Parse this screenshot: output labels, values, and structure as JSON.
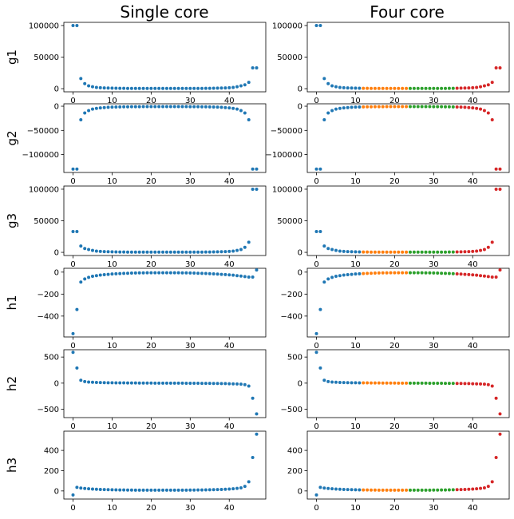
{
  "column_titles": [
    "Single core",
    "Four core"
  ],
  "colors": {
    "c0": "#1f77b4",
    "c1": "#ff7f0e",
    "c2": "#2ca02c",
    "c3": "#d62728"
  },
  "chart_data": {
    "type": "scatter",
    "layout": "6 rows x 2 columns grid",
    "columns": [
      {
        "title": "Single core",
        "segments": [
          [
            0,
            47
          ]
        ]
      },
      {
        "title": "Four core",
        "segments": [
          [
            0,
            11
          ],
          [
            12,
            23
          ],
          [
            24,
            35
          ],
          [
            36,
            47
          ]
        ]
      }
    ],
    "x": {
      "ticks": [
        0,
        10,
        20,
        30,
        40
      ],
      "range": [
        -2.35,
        49.35
      ],
      "values": [
        0,
        1,
        2,
        3,
        4,
        5,
        6,
        7,
        8,
        9,
        10,
        11,
        12,
        13,
        14,
        15,
        16,
        17,
        18,
        19,
        20,
        21,
        22,
        23,
        24,
        25,
        26,
        27,
        28,
        29,
        30,
        31,
        32,
        33,
        34,
        35,
        36,
        37,
        38,
        39,
        40,
        41,
        42,
        43,
        44,
        45,
        46,
        47
      ]
    },
    "rows": [
      {
        "ylabel": "g1",
        "yrange": [
          -5000,
          105000
        ],
        "yticks": [
          0,
          50000,
          100000
        ],
        "yticklabels": [
          "0",
          "50000",
          "100000"
        ],
        "y": [
          100000,
          100000,
          16000,
          8000,
          4500,
          3000,
          2000,
          1500,
          1200,
          1000,
          800,
          700,
          600,
          500,
          450,
          400,
          380,
          360,
          350,
          340,
          330,
          320,
          320,
          320,
          320,
          320,
          320,
          330,
          340,
          350,
          360,
          380,
          400,
          450,
          500,
          600,
          700,
          800,
          1000,
          1200,
          1500,
          2000,
          3000,
          4500,
          6000,
          10000,
          33000,
          33000
        ]
      },
      {
        "ylabel": "g2",
        "yrange": [
          -137000,
          5000
        ],
        "yticks": [
          0,
          -50000,
          -100000
        ],
        "yticklabels": [
          "0",
          "−50000",
          "−100000"
        ],
        "y": [
          -130000,
          -130000,
          -28000,
          -14000,
          -9000,
          -6000,
          -4500,
          -3500,
          -2800,
          -2300,
          -1900,
          -1600,
          -1400,
          -1200,
          -1100,
          -1000,
          -950,
          -900,
          -870,
          -850,
          -840,
          -830,
          -830,
          -830,
          -830,
          -830,
          -830,
          -840,
          -850,
          -870,
          -900,
          -950,
          -1000,
          -1100,
          -1200,
          -1400,
          -1600,
          -1900,
          -2300,
          -2800,
          -3500,
          -4500,
          -6000,
          -9000,
          -14000,
          -28000,
          -130000,
          -130000
        ]
      },
      {
        "ylabel": "g3",
        "yrange": [
          -5000,
          105000
        ],
        "yticks": [
          0,
          50000,
          100000
        ],
        "yticklabels": [
          "0",
          "50000",
          "100000"
        ],
        "y": [
          33000,
          33000,
          10000,
          6000,
          4500,
          3000,
          2000,
          1500,
          1200,
          1000,
          800,
          700,
          600,
          500,
          450,
          400,
          380,
          360,
          350,
          340,
          330,
          320,
          320,
          320,
          320,
          320,
          320,
          330,
          340,
          350,
          360,
          380,
          400,
          450,
          500,
          600,
          700,
          800,
          1000,
          1200,
          1500,
          2000,
          3000,
          4500,
          8000,
          16000,
          100000,
          100000
        ]
      },
      {
        "ylabel": "h1",
        "yrange": [
          -590,
          35
        ],
        "yticks": [
          0,
          -200,
          -400
        ],
        "yticklabels": [
          "0",
          "−200",
          "−400"
        ],
        "y": [
          -560,
          -340,
          -90,
          -62,
          -48,
          -38,
          -32,
          -27,
          -23,
          -20,
          -17,
          -15,
          -13,
          -11,
          -10,
          -9,
          -8,
          -7,
          -7,
          -6,
          -6,
          -6,
          -6,
          -6,
          -6,
          -6,
          -6,
          -6,
          -7,
          -7,
          -8,
          -9,
          -10,
          -11,
          -12,
          -14,
          -16,
          -18,
          -20,
          -22,
          -25,
          -28,
          -32,
          -36,
          -40,
          -45,
          -45,
          20
        ]
      },
      {
        "ylabel": "h2",
        "yrange": [
          -660,
          640
        ],
        "yticks": [
          500,
          0,
          -500
        ],
        "yticklabels": [
          "500",
          "0",
          "−500"
        ],
        "y": [
          590,
          290,
          55,
          30,
          20,
          16,
          13,
          11,
          9,
          8,
          7,
          6,
          5,
          5,
          4,
          3,
          3,
          2,
          2,
          1,
          1,
          0,
          0,
          0,
          0,
          0,
          0,
          -1,
          -1,
          -2,
          -2,
          -3,
          -3,
          -4,
          -5,
          -5,
          -6,
          -7,
          -8,
          -9,
          -11,
          -13,
          -16,
          -20,
          -30,
          -55,
          -290,
          -590
        ]
      },
      {
        "ylabel": "h3",
        "yrange": [
          -80,
          590
        ],
        "yticks": [
          0,
          200,
          400
        ],
        "yticklabels": [
          "0",
          "200",
          "400"
        ],
        "y": [
          -40,
          35,
          28,
          24,
          21,
          19,
          17,
          15,
          14,
          13,
          12,
          11,
          10,
          10,
          9,
          9,
          8,
          8,
          8,
          8,
          8,
          8,
          8,
          8,
          8,
          8,
          8,
          8,
          8,
          8,
          9,
          9,
          10,
          10,
          11,
          12,
          13,
          14,
          15,
          17,
          19,
          21,
          25,
          30,
          45,
          90,
          330,
          560
        ]
      }
    ]
  }
}
